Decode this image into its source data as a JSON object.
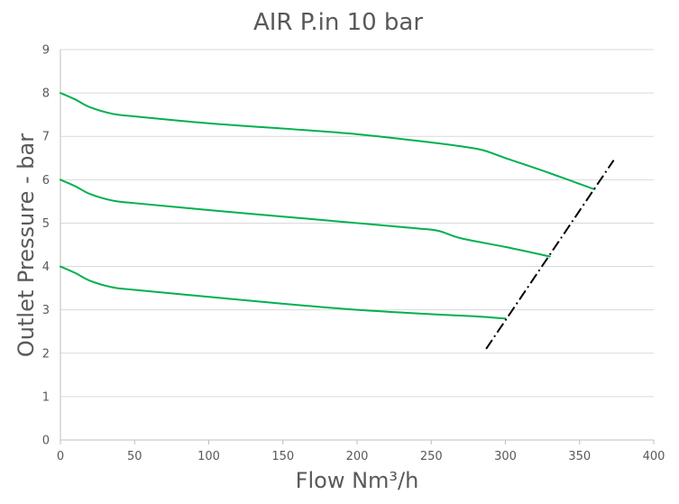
{
  "chart_data": {
    "type": "line",
    "title": "AIR P.in 10 bar",
    "xlabel": "Flow Nm³/h",
    "ylabel": "Outlet Pressure - bar",
    "xlim": [
      0,
      400
    ],
    "ylim": [
      0,
      9
    ],
    "xticks": [
      0,
      50,
      100,
      150,
      200,
      250,
      300,
      350,
      400
    ],
    "yticks": [
      0,
      1,
      2,
      3,
      4,
      5,
      6,
      7,
      8,
      9
    ],
    "grid": true,
    "legend": "none",
    "series_color": "#00b050",
    "limit_color": "#000000",
    "series": [
      {
        "points": [
          [
            0,
            8.0
          ],
          [
            10,
            7.85
          ],
          [
            20,
            7.67
          ],
          [
            35,
            7.52
          ],
          [
            50,
            7.46
          ],
          [
            100,
            7.3
          ],
          [
            150,
            7.18
          ],
          [
            200,
            7.05
          ],
          [
            250,
            6.86
          ],
          [
            270,
            6.77
          ],
          [
            285,
            6.68
          ],
          [
            300,
            6.5
          ],
          [
            330,
            6.15
          ],
          [
            360,
            5.78
          ]
        ]
      },
      {
        "points": [
          [
            0,
            6.0
          ],
          [
            10,
            5.85
          ],
          [
            20,
            5.67
          ],
          [
            35,
            5.52
          ],
          [
            50,
            5.46
          ],
          [
            100,
            5.3
          ],
          [
            150,
            5.15
          ],
          [
            200,
            5.0
          ],
          [
            240,
            4.88
          ],
          [
            255,
            4.82
          ],
          [
            270,
            4.65
          ],
          [
            300,
            4.45
          ],
          [
            330,
            4.23
          ]
        ]
      },
      {
        "points": [
          [
            0,
            4.0
          ],
          [
            10,
            3.85
          ],
          [
            20,
            3.67
          ],
          [
            35,
            3.52
          ],
          [
            50,
            3.46
          ],
          [
            100,
            3.3
          ],
          [
            150,
            3.14
          ],
          [
            200,
            3.0
          ],
          [
            250,
            2.9
          ],
          [
            280,
            2.85
          ],
          [
            300,
            2.8
          ]
        ]
      }
    ],
    "limit_line": {
      "style": "dash-dot",
      "points": [
        [
          287,
          2.1
        ],
        [
          373,
          6.45
        ]
      ]
    }
  }
}
